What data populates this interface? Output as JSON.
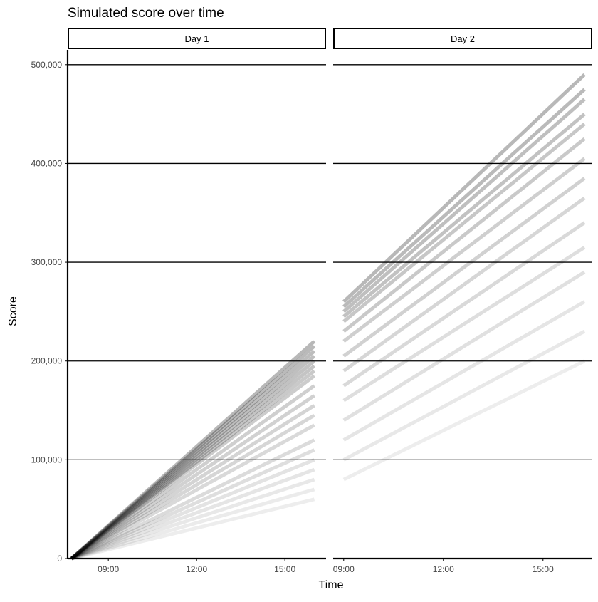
{
  "chart_data": {
    "type": "line",
    "title": "Simulated score over time",
    "xlabel": "Time",
    "ylabel": "Score",
    "ylim": [
      0,
      515000
    ],
    "yticks": [
      0,
      100000,
      200000,
      300000,
      400000,
      500000
    ],
    "ytick_labels": [
      "0",
      "100,000",
      "200,000",
      "300,000",
      "400,000",
      "500,000"
    ],
    "grid": "horizontal major",
    "line_color": "#000000",
    "panels": [
      {
        "label": "Day 1",
        "xlim": [
          "07:37",
          "16:24"
        ],
        "xticks": [
          "09:00",
          "12:00",
          "15:00"
        ],
        "series": [
          {
            "start": [
              "07:45",
              0
            ],
            "end": [
              "16:00",
              220000
            ]
          },
          {
            "start": [
              "07:45",
              0
            ],
            "end": [
              "16:00",
              215000
            ]
          },
          {
            "start": [
              "07:45",
              0
            ],
            "end": [
              "16:00",
              210000
            ]
          },
          {
            "start": [
              "07:45",
              0
            ],
            "end": [
              "16:00",
              205000
            ]
          },
          {
            "start": [
              "07:45",
              0
            ],
            "end": [
              "16:00",
              200000
            ]
          },
          {
            "start": [
              "07:45",
              0
            ],
            "end": [
              "16:00",
              195000
            ]
          },
          {
            "start": [
              "07:45",
              0
            ],
            "end": [
              "16:00",
              190000
            ]
          },
          {
            "start": [
              "07:45",
              0
            ],
            "end": [
              "16:00",
              185000
            ]
          },
          {
            "start": [
              "07:45",
              0
            ],
            "end": [
              "16:00",
              175000
            ]
          },
          {
            "start": [
              "07:45",
              0
            ],
            "end": [
              "16:00",
              165000
            ]
          },
          {
            "start": [
              "07:45",
              0
            ],
            "end": [
              "16:00",
              155000
            ]
          },
          {
            "start": [
              "07:45",
              0
            ],
            "end": [
              "16:00",
              145000
            ]
          },
          {
            "start": [
              "07:45",
              0
            ],
            "end": [
              "16:00",
              135000
            ]
          },
          {
            "start": [
              "07:45",
              0
            ],
            "end": [
              "16:00",
              120000
            ]
          },
          {
            "start": [
              "07:45",
              0
            ],
            "end": [
              "16:00",
              110000
            ]
          },
          {
            "start": [
              "07:45",
              0
            ],
            "end": [
              "16:00",
              100000
            ]
          },
          {
            "start": [
              "07:45",
              0
            ],
            "end": [
              "16:00",
              90000
            ]
          },
          {
            "start": [
              "07:45",
              0
            ],
            "end": [
              "16:00",
              80000
            ]
          },
          {
            "start": [
              "07:45",
              0
            ],
            "end": [
              "16:00",
              70000
            ]
          },
          {
            "start": [
              "07:45",
              0
            ],
            "end": [
              "16:00",
              60000
            ]
          }
        ]
      },
      {
        "label": "Day 2",
        "xlim": [
          "08:41",
          "16:29"
        ],
        "xticks": [
          "09:00",
          "12:00",
          "15:00"
        ],
        "series": [
          {
            "start": [
              "09:00",
              260000
            ],
            "end": [
              "16:15",
              490000
            ]
          },
          {
            "start": [
              "09:00",
              255000
            ],
            "end": [
              "16:15",
              475000
            ]
          },
          {
            "start": [
              "09:00",
              250000
            ],
            "end": [
              "16:15",
              465000
            ]
          },
          {
            "start": [
              "09:00",
              245000
            ],
            "end": [
              "16:15",
              450000
            ]
          },
          {
            "start": [
              "09:00",
              240000
            ],
            "end": [
              "16:15",
              440000
            ]
          },
          {
            "start": [
              "09:00",
              230000
            ],
            "end": [
              "16:15",
              425000
            ]
          },
          {
            "start": [
              "09:00",
              220000
            ],
            "end": [
              "16:15",
              405000
            ]
          },
          {
            "start": [
              "09:00",
              205000
            ],
            "end": [
              "16:15",
              385000
            ]
          },
          {
            "start": [
              "09:00",
              190000
            ],
            "end": [
              "16:15",
              365000
            ]
          },
          {
            "start": [
              "09:00",
              175000
            ],
            "end": [
              "16:15",
              340000
            ]
          },
          {
            "start": [
              "09:00",
              160000
            ],
            "end": [
              "16:15",
              315000
            ]
          },
          {
            "start": [
              "09:00",
              140000
            ],
            "end": [
              "16:15",
              290000
            ]
          },
          {
            "start": [
              "09:00",
              120000
            ],
            "end": [
              "16:15",
              260000
            ]
          },
          {
            "start": [
              "09:00",
              100000
            ],
            "end": [
              "16:15",
              230000
            ]
          },
          {
            "start": [
              "09:00",
              80000
            ],
            "end": [
              "16:15",
              200000
            ]
          }
        ]
      }
    ]
  }
}
